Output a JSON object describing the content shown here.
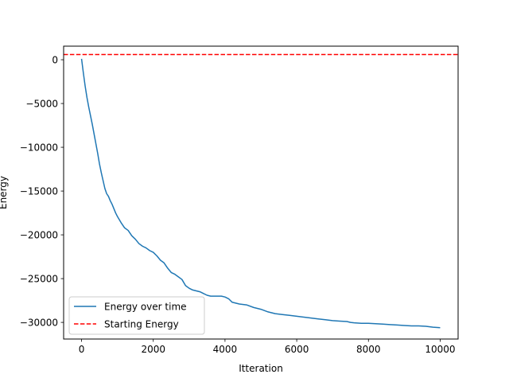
{
  "chart_data": {
    "type": "line",
    "title": "",
    "xlabel": "Itteration",
    "ylabel": "Energy",
    "xlim": [
      -500,
      10500
    ],
    "ylim": [
      -31900,
      1550
    ],
    "xticks": [
      0,
      2000,
      4000,
      6000,
      8000,
      10000
    ],
    "xtick_labels": [
      "0",
      "2000",
      "4000",
      "6000",
      "8000",
      "10000"
    ],
    "yticks": [
      0,
      -5000,
      -10000,
      -15000,
      -20000,
      -25000,
      -30000
    ],
    "ytick_labels": [
      "0",
      "−5000",
      "−10000",
      "−15000",
      "−20000",
      "−25000",
      "−30000"
    ],
    "grid": false,
    "legend_position": "lower-left",
    "series": [
      {
        "name": "Energy over time",
        "color": "#1f77b4",
        "style": "solid",
        "x": [
          0,
          50,
          100,
          150,
          200,
          250,
          300,
          350,
          400,
          450,
          500,
          550,
          600,
          650,
          700,
          750,
          800,
          850,
          900,
          950,
          1000,
          1100,
          1200,
          1300,
          1400,
          1500,
          1600,
          1700,
          1800,
          1900,
          2000,
          2100,
          2200,
          2300,
          2400,
          2500,
          2600,
          2700,
          2800,
          2900,
          3000,
          3100,
          3200,
          3300,
          3400,
          3500,
          3600,
          3700,
          3800,
          3900,
          4000,
          4100,
          4200,
          4400,
          4600,
          4800,
          5000,
          5200,
          5400,
          5600,
          5800,
          6000,
          6200,
          6400,
          6600,
          6800,
          7000,
          7200,
          7400,
          7500,
          7600,
          7800,
          8000,
          8200,
          8400,
          8600,
          8800,
          9000,
          9200,
          9400,
          9600,
          9800,
          10000
        ],
        "values": [
          100,
          -1500,
          -3000,
          -4300,
          -5400,
          -6400,
          -7400,
          -8500,
          -9600,
          -10700,
          -11900,
          -12900,
          -13800,
          -14700,
          -15300,
          -15600,
          -16100,
          -16500,
          -17000,
          -17500,
          -17900,
          -18600,
          -19200,
          -19500,
          -20100,
          -20500,
          -21000,
          -21300,
          -21500,
          -21800,
          -22000,
          -22400,
          -22900,
          -23200,
          -23800,
          -24300,
          -24500,
          -24800,
          -25100,
          -25800,
          -26100,
          -26300,
          -26400,
          -26500,
          -26700,
          -26900,
          -27000,
          -27000,
          -27000,
          -27000,
          -27100,
          -27300,
          -27700,
          -27900,
          -28000,
          -28300,
          -28500,
          -28800,
          -29000,
          -29100,
          -29200,
          -29300,
          -29400,
          -29500,
          -29600,
          -29700,
          -29800,
          -29850,
          -29900,
          -30000,
          -30050,
          -30100,
          -30100,
          -30150,
          -30200,
          -30250,
          -30300,
          -30350,
          -30400,
          -30400,
          -30450,
          -30550,
          -30600
        ]
      },
      {
        "name": "Starting Energy",
        "color": "#ff0000",
        "style": "dashed",
        "x": [
          -500,
          10500
        ],
        "values": [
          600,
          600
        ]
      }
    ]
  }
}
